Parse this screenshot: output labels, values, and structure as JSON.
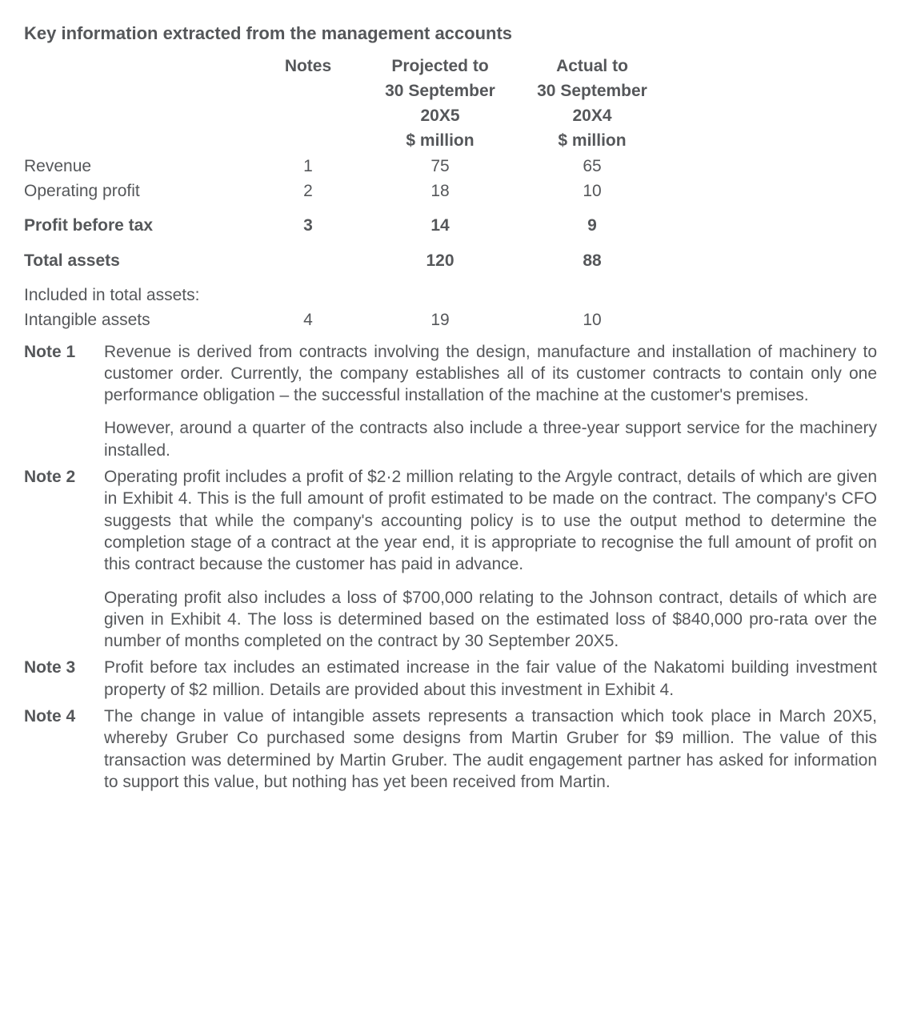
{
  "title": "Key information extracted from the management accounts",
  "table": {
    "headers": {
      "notes": "Notes",
      "projected_l1": "Projected to",
      "projected_l2": "30 September",
      "projected_l3": "20X5",
      "projected_l4": "$ million",
      "actual_l1": "Actual to",
      "actual_l2": "30 September",
      "actual_l3": "20X4",
      "actual_l4": "$ million"
    },
    "rows": {
      "revenue": {
        "label": "Revenue",
        "note": "1",
        "proj": "75",
        "act": "65",
        "bold": false
      },
      "operating_profit": {
        "label": "Operating profit",
        "note": "2",
        "proj": "18",
        "act": "10",
        "bold": false
      },
      "profit_before_tax": {
        "label": "Profit before tax",
        "note": "3",
        "proj": "14",
        "act": "9",
        "bold": true
      },
      "total_assets": {
        "label": "Total assets",
        "note": "",
        "proj": "120",
        "act": "88",
        "bold": true
      },
      "included_label": {
        "label": "Included in total assets:",
        "note": "",
        "proj": "",
        "act": "",
        "bold": false
      },
      "intangible_assets": {
        "label": "Intangible assets",
        "note": "4",
        "proj": "19",
        "act": "10",
        "bold": false
      }
    }
  },
  "notes": {
    "n1": {
      "label": "Note 1",
      "p1": "Revenue is derived from contracts involving the design, manufacture and installation of machinery to customer order. Currently, the company establishes all of its customer contracts to contain only one performance obligation – the successful installation of the machine at the customer's premises.",
      "p2": "However, around a quarter of the contracts also include a three-year support service for the machinery installed."
    },
    "n2": {
      "label": "Note 2",
      "p1": "Operating profit includes a profit of $2·2 million relating to the Argyle contract, details of which are given in Exhibit 4. This is the full amount of profit estimated to be made on the contract. The company's CFO suggests that while the company's accounting policy is to use the output method to determine the completion stage of a contract at the year end, it is appropriate to recognise the full amount of profit on this contract because the customer has paid in advance.",
      "p2": "Operating profit also includes a loss of $700,000 relating to the Johnson contract, details of which are given in Exhibit 4. The loss is determined based on the estimated loss of $840,000 pro-rata over the number of months completed on the contract by 30 September 20X5."
    },
    "n3": {
      "label": "Note 3",
      "p1": "Profit before tax includes an estimated increase in the fair value of the Nakatomi building investment property of $2 million. Details are provided about this investment in Exhibit 4."
    },
    "n4": {
      "label": "Note 4",
      "p1": "The change in value of intangible assets represents a transaction which took place in March 20X5, whereby Gruber Co purchased some designs from Martin Gruber for $9 million. The value of this transaction was determined by Martin Gruber. The audit engagement partner has asked for information to support this value, but nothing has yet been received from Martin."
    }
  }
}
